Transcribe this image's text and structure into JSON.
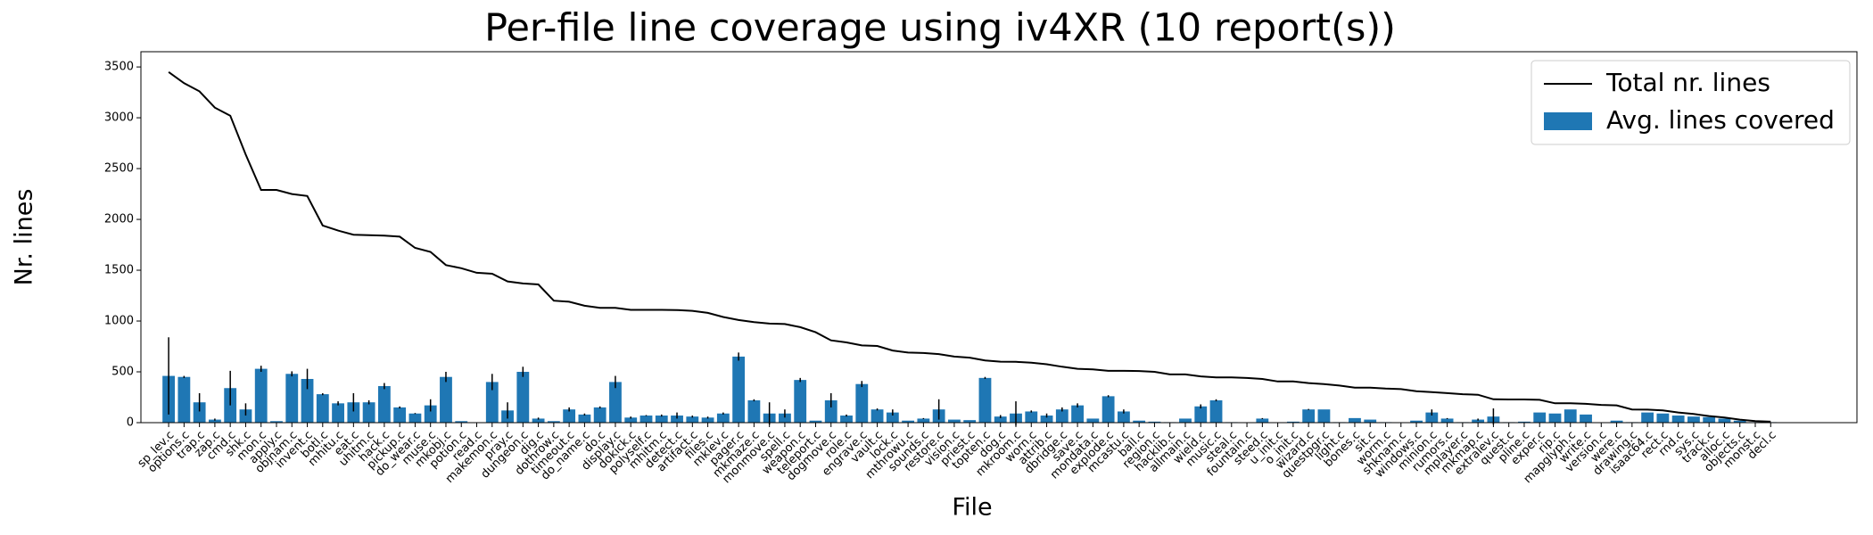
{
  "chart_data": {
    "type": "bar",
    "title": "Per-file line coverage using iv4XR (10 report(s))",
    "x_label": "File",
    "y_label": "Nr. lines",
    "categories": [
      "sp_lev.c",
      "options.c",
      "trap.c",
      "zap.c",
      "cmd.c",
      "shk.c",
      "mon.c",
      "apply.c",
      "objnam.c",
      "invent.c",
      "botl.c",
      "mhitu.c",
      "eat.c",
      "uhitm.c",
      "hack.c",
      "pickup.c",
      "do_wear.c",
      "muse.c",
      "mkobj.c",
      "potion.c",
      "read.c",
      "makemon.c",
      "pray.c",
      "dungeon.c",
      "dig.c",
      "dothrow.c",
      "timeout.c",
      "do_name.c",
      "do.c",
      "display.c",
      "dokick.c",
      "polyself.c",
      "mhitm.c",
      "detect.c",
      "artifact.c",
      "files.c",
      "mklev.c",
      "pager.c",
      "mkmaze.c",
      "monmove.c",
      "spell.c",
      "weapon.c",
      "teleport.c",
      "dogmove.c",
      "role.c",
      "engrave.c",
      "vault.c",
      "lock.c",
      "mthrowu.c",
      "sounds.c",
      "restore.c",
      "vision.c",
      "priest.c",
      "topten.c",
      "dog.c",
      "mkroom.c",
      "worn.c",
      "attrib.c",
      "dbridge.c",
      "save.c",
      "mondata.c",
      "explode.c",
      "mcastu.c",
      "ball.c",
      "region.c",
      "hacklib.c",
      "allmain.c",
      "wield.c",
      "music.c",
      "steal.c",
      "fountain.c",
      "steed.c",
      "u_init.c",
      "o_init.c",
      "wizard.c",
      "questpgr.c",
      "light.c",
      "bones.c",
      "sit.c",
      "worm.c",
      "shknam.c",
      "windows.c",
      "minion.c",
      "rumors.c",
      "mplayer.c",
      "mkmap.c",
      "extralev.c",
      "quest.c",
      "pline.c",
      "exper.c",
      "rip.c",
      "mapglyph.c",
      "write.c",
      "version.c",
      "were.c",
      "drawing.c",
      "isaac64.c",
      "rect.c",
      "rnd.c",
      "sys.c",
      "track.c",
      "alloc.c",
      "objects.c",
      "monst.c",
      "decl.c"
    ],
    "series": [
      {
        "name": "Total nr. lines",
        "type": "line",
        "color": "#000000",
        "values": [
          3450,
          3340,
          3260,
          3100,
          3020,
          2640,
          2290,
          2290,
          2250,
          2230,
          1940,
          1890,
          1850,
          1845,
          1840,
          1830,
          1720,
          1680,
          1550,
          1520,
          1475,
          1465,
          1390,
          1370,
          1360,
          1200,
          1190,
          1150,
          1130,
          1130,
          1110,
          1110,
          1110,
          1108,
          1100,
          1080,
          1040,
          1010,
          990,
          975,
          970,
          940,
          890,
          810,
          790,
          760,
          755,
          710,
          690,
          685,
          675,
          650,
          640,
          612,
          600,
          598,
          590,
          575,
          550,
          530,
          525,
          510,
          510,
          508,
          500,
          475,
          475,
          455,
          445,
          445,
          440,
          430,
          405,
          405,
          390,
          380,
          365,
          345,
          345,
          335,
          330,
          310,
          300,
          290,
          280,
          275,
          230,
          228,
          228,
          225,
          190,
          190,
          185,
          175,
          170,
          130,
          128,
          120,
          100,
          85,
          65,
          50,
          30,
          15,
          10
        ]
      },
      {
        "name": "Avg. lines covered",
        "type": "bar",
        "color": "#1f77b4",
        "values": [
          460,
          450,
          200,
          30,
          340,
          130,
          530,
          15,
          480,
          430,
          280,
          190,
          200,
          200,
          360,
          150,
          90,
          170,
          450,
          15,
          0,
          400,
          120,
          500,
          40,
          15,
          130,
          80,
          150,
          400,
          50,
          70,
          70,
          70,
          60,
          50,
          90,
          650,
          220,
          90,
          90,
          420,
          20,
          220,
          70,
          380,
          130,
          100,
          20,
          40,
          130,
          30,
          25,
          440,
          60,
          90,
          110,
          70,
          130,
          170,
          40,
          260,
          110,
          20,
          10,
          5,
          40,
          160,
          220,
          5,
          0,
          40,
          0,
          10,
          130,
          130,
          5,
          45,
          30,
          5,
          0,
          20,
          100,
          40,
          5,
          30,
          60,
          5,
          10,
          100,
          90,
          130,
          80,
          0,
          20,
          5,
          100,
          90,
          70,
          60,
          55,
          40,
          20,
          5,
          5
        ],
        "errors": [
          380,
          10,
          90,
          10,
          170,
          60,
          30,
          0,
          25,
          100,
          10,
          20,
          90,
          20,
          30,
          10,
          5,
          60,
          50,
          0,
          0,
          80,
          80,
          50,
          10,
          0,
          20,
          10,
          10,
          60,
          10,
          5,
          10,
          30,
          10,
          10,
          10,
          40,
          10,
          110,
          40,
          20,
          0,
          70,
          10,
          30,
          10,
          30,
          0,
          5,
          100,
          0,
          0,
          10,
          15,
          120,
          10,
          20,
          20,
          20,
          0,
          10,
          20,
          0,
          0,
          0,
          0,
          20,
          10,
          0,
          0,
          5,
          0,
          0,
          5,
          0,
          0,
          0,
          0,
          0,
          0,
          0,
          30,
          5,
          0,
          10,
          80,
          0,
          0,
          0,
          0,
          0,
          0,
          0,
          0,
          0,
          0,
          0,
          0,
          0,
          0,
          0,
          0,
          0,
          0
        ]
      }
    ],
    "ylim": [
      0,
      3650
    ],
    "yticks": [
      0,
      500,
      1000,
      1500,
      2000,
      2500,
      3000,
      3500
    ],
    "legend": "upper right"
  }
}
